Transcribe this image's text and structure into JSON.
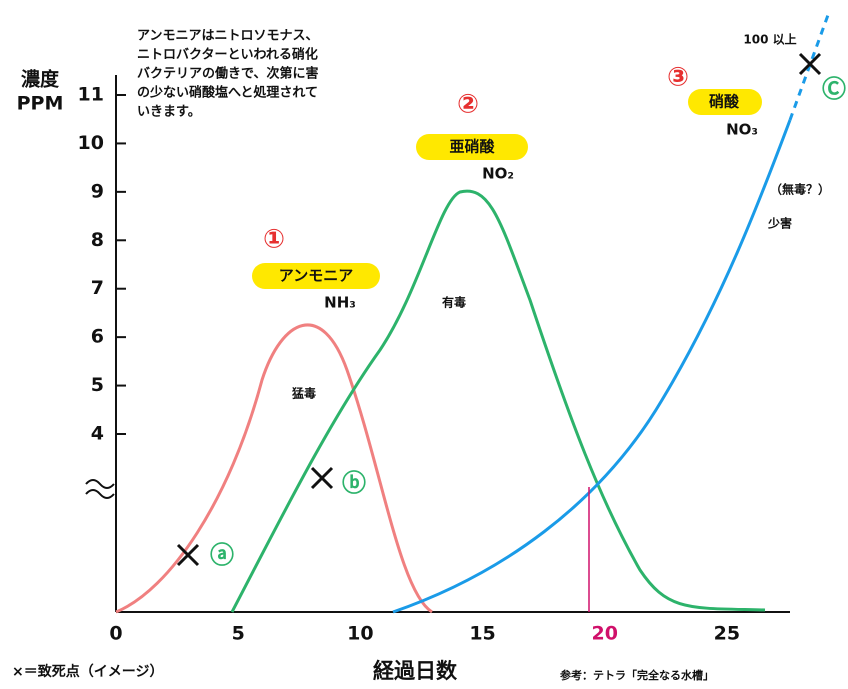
{
  "chart_data": {
    "type": "line",
    "y_label": [
      "濃度",
      "PPM"
    ],
    "x_label": "経過日数",
    "note": [
      "アンモニアはニトロソモナス、",
      "ニトロバクターといわれる硝化",
      "バクテリアの働きで、次第に害",
      "の少ない硝酸塩へと処理されて",
      "いきます。"
    ],
    "xlim": [
      0,
      27.5
    ],
    "xticks": [
      0,
      5,
      10,
      15,
      20,
      25
    ],
    "highlight_xtick": 20,
    "ylim": [
      4,
      11
    ],
    "yticks": [
      4,
      5,
      6,
      7,
      8,
      9,
      10,
      11
    ],
    "annotations": {
      "ammonia": {
        "number": "①",
        "name": "アンモニア",
        "formula": "NH₃",
        "toxicity": "猛毒",
        "color": "#f08080"
      },
      "nitrite": {
        "number": "②",
        "name": "亜硝酸",
        "formula": "NO₂",
        "toxicity": "有毒",
        "color": "#2db36b"
      },
      "nitrate": {
        "number": "③",
        "name": "硝酸",
        "formula": "NO₃",
        "toxicity": "少害",
        "toxicity_note": "（無毒？）",
        "color": "#1a9be8"
      },
      "over_100": "100 以上",
      "marker_a": "ⓐ",
      "marker_b": "ⓑ",
      "marker_c": "Ⓒ"
    },
    "legend_note": "×＝致死点（イメージ）",
    "source": "参考：テトラ「完全なる水槽」"
  }
}
